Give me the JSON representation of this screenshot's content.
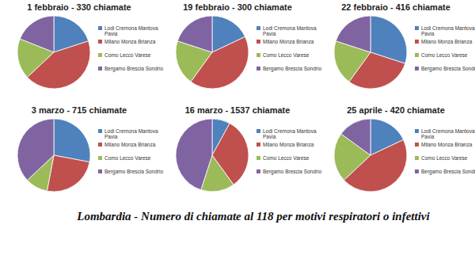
{
  "title": "Lombardia - Numero di chiamate al 118 per motivi respiratori o infettivi",
  "chart_data": [
    {
      "type": "pie",
      "title": "1 febbraio - 330 chiamate",
      "categories": [
        "Lodi Cremona Mantova Pavia",
        "Milano Monza Brianza",
        "Como Lecco Varese",
        "Bergamo Brescia Sondrio"
      ],
      "values": [
        20,
        43,
        18,
        19
      ],
      "colors": [
        "#4f81bd",
        "#c0504d",
        "#9bbb59",
        "#8064a2"
      ],
      "legend": "right"
    },
    {
      "type": "pie",
      "title": "19 febbraio - 300 chiamate",
      "categories": [
        "Lodi Cremona Mantova Pavia",
        "Milano Monza Brianza",
        "Como Lecco Varese",
        "Bergamo Brescia Sondrio"
      ],
      "values": [
        18,
        42,
        20,
        20
      ],
      "colors": [
        "#4f81bd",
        "#c0504d",
        "#9bbb59",
        "#8064a2"
      ],
      "legend": "right"
    },
    {
      "type": "pie",
      "title": "22 febbraio - 416 chiamate",
      "categories": [
        "Lodi Cremona Mantova Pavia",
        "Milano Monza Brianza",
        "Como Lecco Varese",
        "Bergamo Brescia Sondrio"
      ],
      "values": [
        30,
        30,
        20,
        20
      ],
      "colors": [
        "#4f81bd",
        "#c0504d",
        "#9bbb59",
        "#8064a2"
      ],
      "legend": "right"
    },
    {
      "type": "pie",
      "title": "3 marzo - 715 chiamate",
      "categories": [
        "Lodi Cremona Mantova Pavia",
        "Milano Monza Brianza",
        "Como Lecco Varese",
        "Bergamo Brescia Sondrio"
      ],
      "values": [
        28,
        25,
        10,
        37
      ],
      "colors": [
        "#4f81bd",
        "#c0504d",
        "#9bbb59",
        "#8064a2"
      ],
      "legend": "right"
    },
    {
      "type": "pie",
      "title": "16 marzo - 1537 chiamate",
      "categories": [
        "Lodi Cremona Mantova Pavia",
        "Milano Monza Brianza",
        "Como Lecco Varese",
        "Bergamo Brescia Sondrio"
      ],
      "values": [
        8,
        32,
        15,
        45
      ],
      "colors": [
        "#4f81bd",
        "#c0504d",
        "#9bbb59",
        "#8064a2"
      ],
      "legend": "right"
    },
    {
      "type": "pie",
      "title": "25 aprile - 420 chiamate",
      "categories": [
        "Lodi Cremona Mantova Pavia",
        "Milano Monza Brianza",
        "Como Lecco Varese",
        "Bergamo Brescia Sondrio"
      ],
      "values": [
        18,
        45,
        22,
        15
      ],
      "colors": [
        "#4f81bd",
        "#c0504d",
        "#9bbb59",
        "#8064a2"
      ],
      "legend": "right"
    }
  ]
}
